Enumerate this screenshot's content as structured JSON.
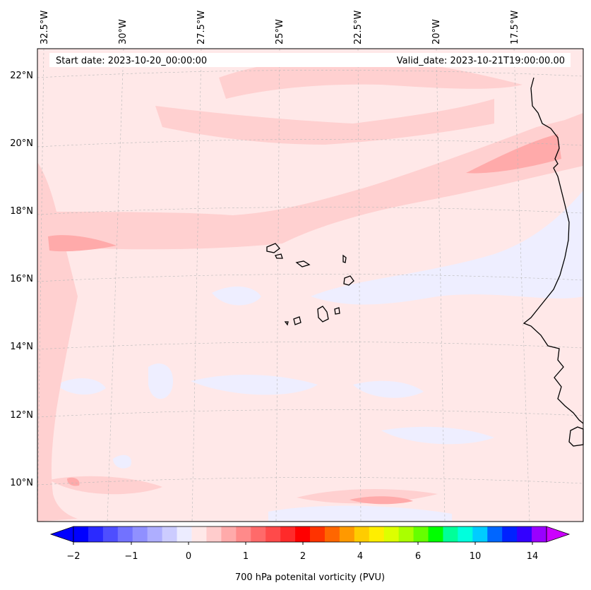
{
  "header": {
    "start_date": "Start date: 2023-10-20_00:00:00",
    "valid_date": "Valid_date: 2023-10-21T19:00:00.00"
  },
  "lon_labels": [
    "32.5°W",
    "30°W",
    "27.5°W",
    "25°W",
    "22.5°W",
    "20°W",
    "17.5°W"
  ],
  "lat_labels": [
    "22°N",
    "20°N",
    "18°N",
    "16°N",
    "14°N",
    "12°N",
    "10°N"
  ],
  "colorbar": {
    "title": "700 hPa potenital vorticity (PVU)",
    "tick_labels": [
      "−2",
      "−1",
      "0",
      "1",
      "2",
      "4",
      "6",
      "10",
      "14"
    ],
    "colors": [
      "#0000ff",
      "#2a2aff",
      "#4e4eff",
      "#7272ff",
      "#9090ff",
      "#aeaeff",
      "#ccccff",
      "#ececff",
      "#ffe8e8",
      "#ffcccc",
      "#ffaaaa",
      "#ff8a8a",
      "#ff6a6a",
      "#ff4a4a",
      "#ff2a2a",
      "#ff0000",
      "#ff3300",
      "#ff6600",
      "#ff9900",
      "#ffcc00",
      "#ffee00",
      "#ddff00",
      "#aaff00",
      "#66ff00",
      "#00ff00",
      "#00ff99",
      "#00ffdd",
      "#00ccff",
      "#0066ff",
      "#0022ff",
      "#3300ff",
      "#9900ff"
    ],
    "under_color": "#0000ff",
    "over_color": "#cc00ff"
  },
  "map": {
    "background_color": "#ffe8e8",
    "shading_colors": {
      "very_light_blue": "#eeeeff",
      "light_pink": "#ffd0d0",
      "pink": "#ffaaaa"
    }
  }
}
